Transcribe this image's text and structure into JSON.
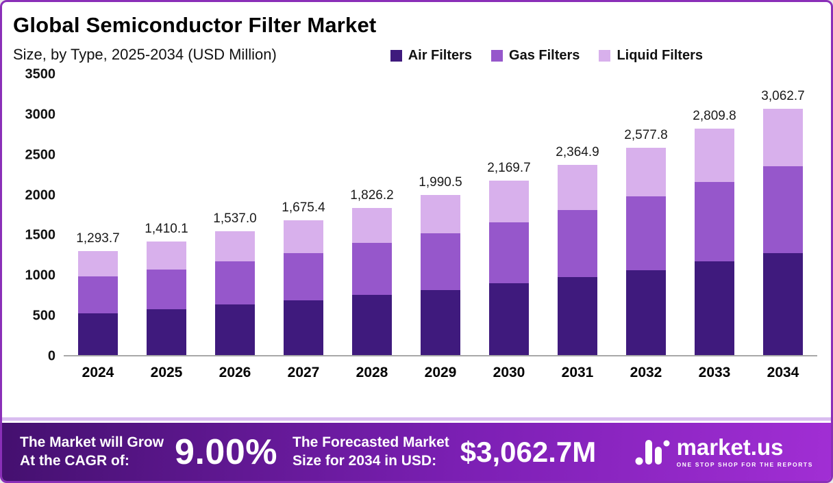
{
  "header": {
    "title": "Global Semiconductor Filter Market",
    "subtitle": "Size, by Type, 2025-2034 (USD Million)"
  },
  "chart_data": {
    "type": "bar",
    "stacked": true,
    "title": "Global Semiconductor Filter Market",
    "subtitle": "Size, by Type, 2025-2034 (USD Million)",
    "unit": "USD Million",
    "grid": false,
    "legend_position": "top-right",
    "ylim": [
      0,
      3500
    ],
    "y_ticks": [
      0,
      500,
      1000,
      1500,
      2000,
      2500,
      3000,
      3500
    ],
    "categories": [
      "2024",
      "2025",
      "2026",
      "2027",
      "2028",
      "2029",
      "2030",
      "2031",
      "2032",
      "2033",
      "2034"
    ],
    "series": [
      {
        "name": "Air Filters",
        "color": "#3f1a7d",
        "values": [
          520,
          570,
          625,
          680,
          745,
          810,
          890,
          970,
          1055,
          1160,
          1270
        ]
      },
      {
        "name": "Gas Filters",
        "color": "#9657cb",
        "values": [
          460,
          495,
          535,
          588,
          645,
          702,
          762,
          832,
          917,
          993,
          1072
        ]
      },
      {
        "name": "Liquid Filters",
        "color": "#d8b0ec",
        "values": [
          313.7,
          345.1,
          377.0,
          407.4,
          436.2,
          478.5,
          517.7,
          562.9,
          605.8,
          656.8,
          720.7
        ]
      }
    ],
    "totals": [
      1293.7,
      1410.1,
      1537.0,
      1675.4,
      1826.2,
      1990.5,
      2169.7,
      2364.9,
      2577.8,
      2809.8,
      3062.7
    ],
    "total_labels": [
      "1,293.7",
      "1,410.1",
      "1,537.0",
      "1,675.4",
      "1,826.2",
      "1,990.5",
      "2,169.7",
      "2,364.9",
      "2,577.8",
      "2,809.8",
      "3,062.7"
    ]
  },
  "footer": {
    "cagr_label_line1": "The Market will Grow",
    "cagr_label_line2": "At the CAGR of:",
    "cagr_value": "9.00%",
    "forecast_label_line1": "The Forecasted Market",
    "forecast_label_line2": "Size for 2034 in USD:",
    "forecast_value": "$3,062.7M",
    "brand": "market.us",
    "brand_tagline": "ONE STOP SHOP FOR THE REPORTS"
  }
}
